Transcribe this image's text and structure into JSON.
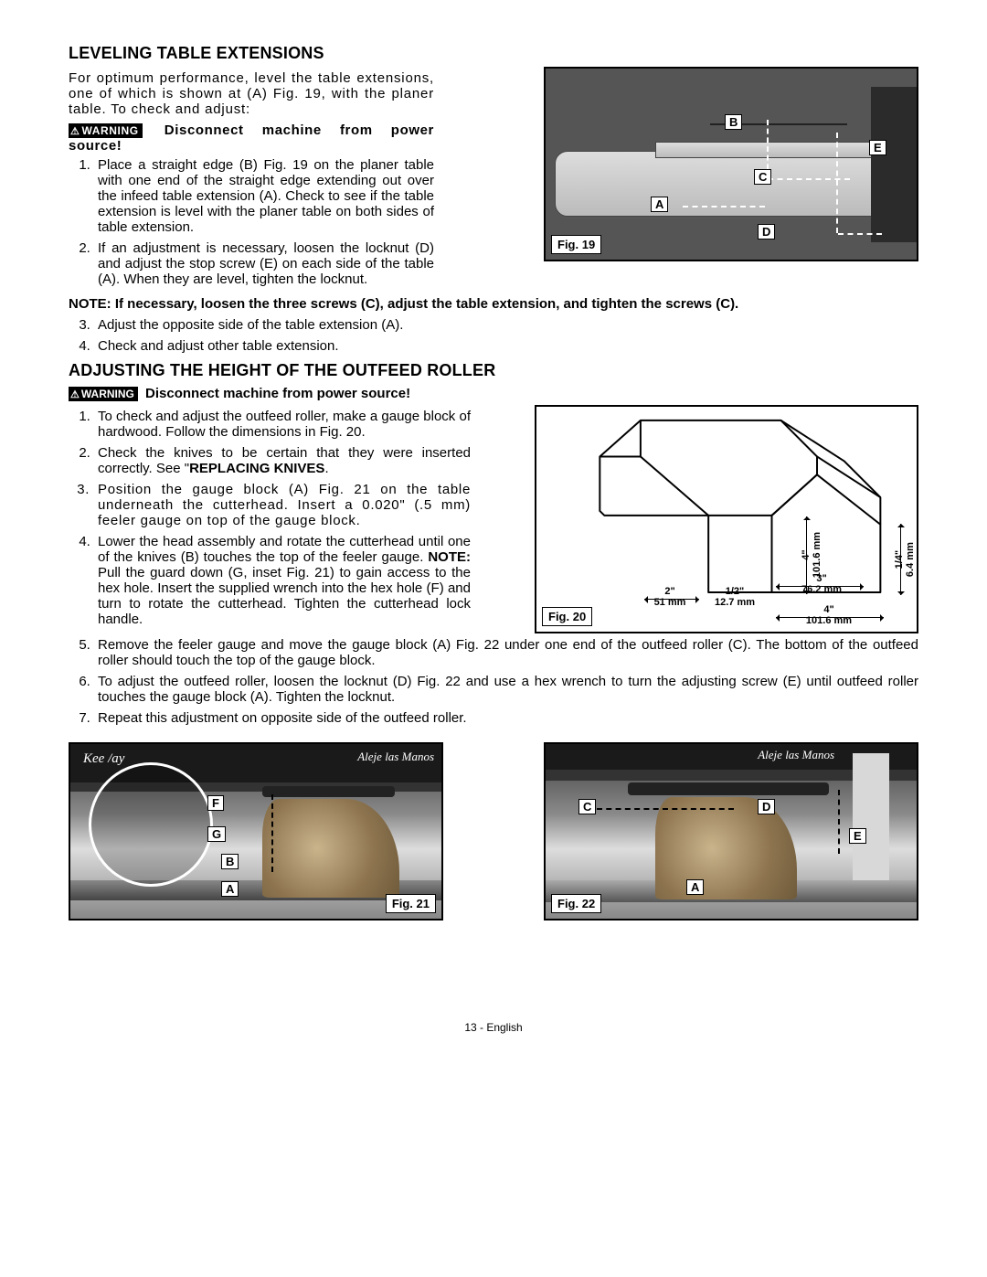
{
  "section1": {
    "title": "LEVELING TABLE EXTENSIONS",
    "intro": "For optimum performance, level the table extensions, one of which is shown at (A) Fig. 19, with the planer table. To check and adjust:",
    "warning": "Disconnect machine from power source!",
    "warning_badge": "WARNING",
    "steps12": [
      "Place a straight edge (B) Fig. 19 on the planer table with one end of the straight edge extending out over the infeed table extension (A). Check to see if the table extension is level with the planer table on both sides of table extension.",
      "If an adjustment is necessary, loosen the locknut (D) and adjust the stop screw (E) on each side of the table (A). When they are level, tighten the locknut."
    ],
    "note": "NOTE: If necessary, loosen the three screws (C), adjust the table extension, and tighten the screws (C).",
    "steps34": [
      "Adjust the opposite side of the table extension (A).",
      "Check and adjust other table extension."
    ],
    "fig19": {
      "label": "Fig. 19",
      "callouts": {
        "A": "A",
        "B": "B",
        "C": "C",
        "D": "D",
        "E": "E"
      }
    }
  },
  "section2": {
    "title": "ADJUSTING THE HEIGHT OF THE OUTFEED ROLLER",
    "warning_badge": "WARNING",
    "warning": "Disconnect machine from power source!",
    "steps_left": [
      "To check and adjust the outfeed roller, make a gauge block of hardwood. Follow the dimensions in Fig. 20.",
      "Check the knives to be certain that they were inserted correctly. See \"REPLACING KNIVES.",
      "Position the gauge block (A) Fig. 21 on the table underneath the cutterhead. Insert a 0.020\" (.5 mm) feeler gauge on top of the gauge block.",
      "Lower the head assembly and rotate the cutterhead until one of the knives (B) touches the top of the feeler gauge. NOTE: Pull the guard down (G, inset Fig. 21) to gain access to the hex hole. Insert the supplied wrench into the hex hole (F) and turn to rotate the cutterhead. Tighten the cutterhead lock handle."
    ],
    "steps_full": [
      "Remove the feeler gauge and move the gauge block (A) Fig. 22 under one end of the outfeed roller (C). The bottom of the outfeed roller should touch the top of the gauge block.",
      "To adjust the outfeed roller, loosen the locknut (D) Fig. 22 and use a hex wrench to turn the adjusting screw (E) until outfeed roller touches the gauge block (A). Tighten the locknut.",
      "Repeat this adjustment on opposite side of the outfeed roller."
    ],
    "fig20": {
      "label": "Fig. 20",
      "dims": {
        "h1": "4\"",
        "h1m": "101.6 mm",
        "w1": "2\"",
        "w1m": "51 mm",
        "w2": "1/2\"",
        "w2m": "12.7 mm",
        "w3": "3\"",
        "w3m": "76.2 mm",
        "w4": "4\"",
        "w4m": "101.6 mm",
        "h2": "1/4\"",
        "h2m": "6.4 mm"
      }
    },
    "fig21": {
      "label": "Fig. 21",
      "banner": "Aleje las Manos",
      "keep": "Kee        /ay",
      "A": "A",
      "B": "B",
      "F": "F",
      "G": "G"
    },
    "fig22": {
      "label": "Fig. 22",
      "banner": "Aleje las Manos",
      "A": "A",
      "C": "C",
      "D": "D",
      "E": "E"
    }
  },
  "footer": {
    "page": "13 - ",
    "lang": "English"
  }
}
